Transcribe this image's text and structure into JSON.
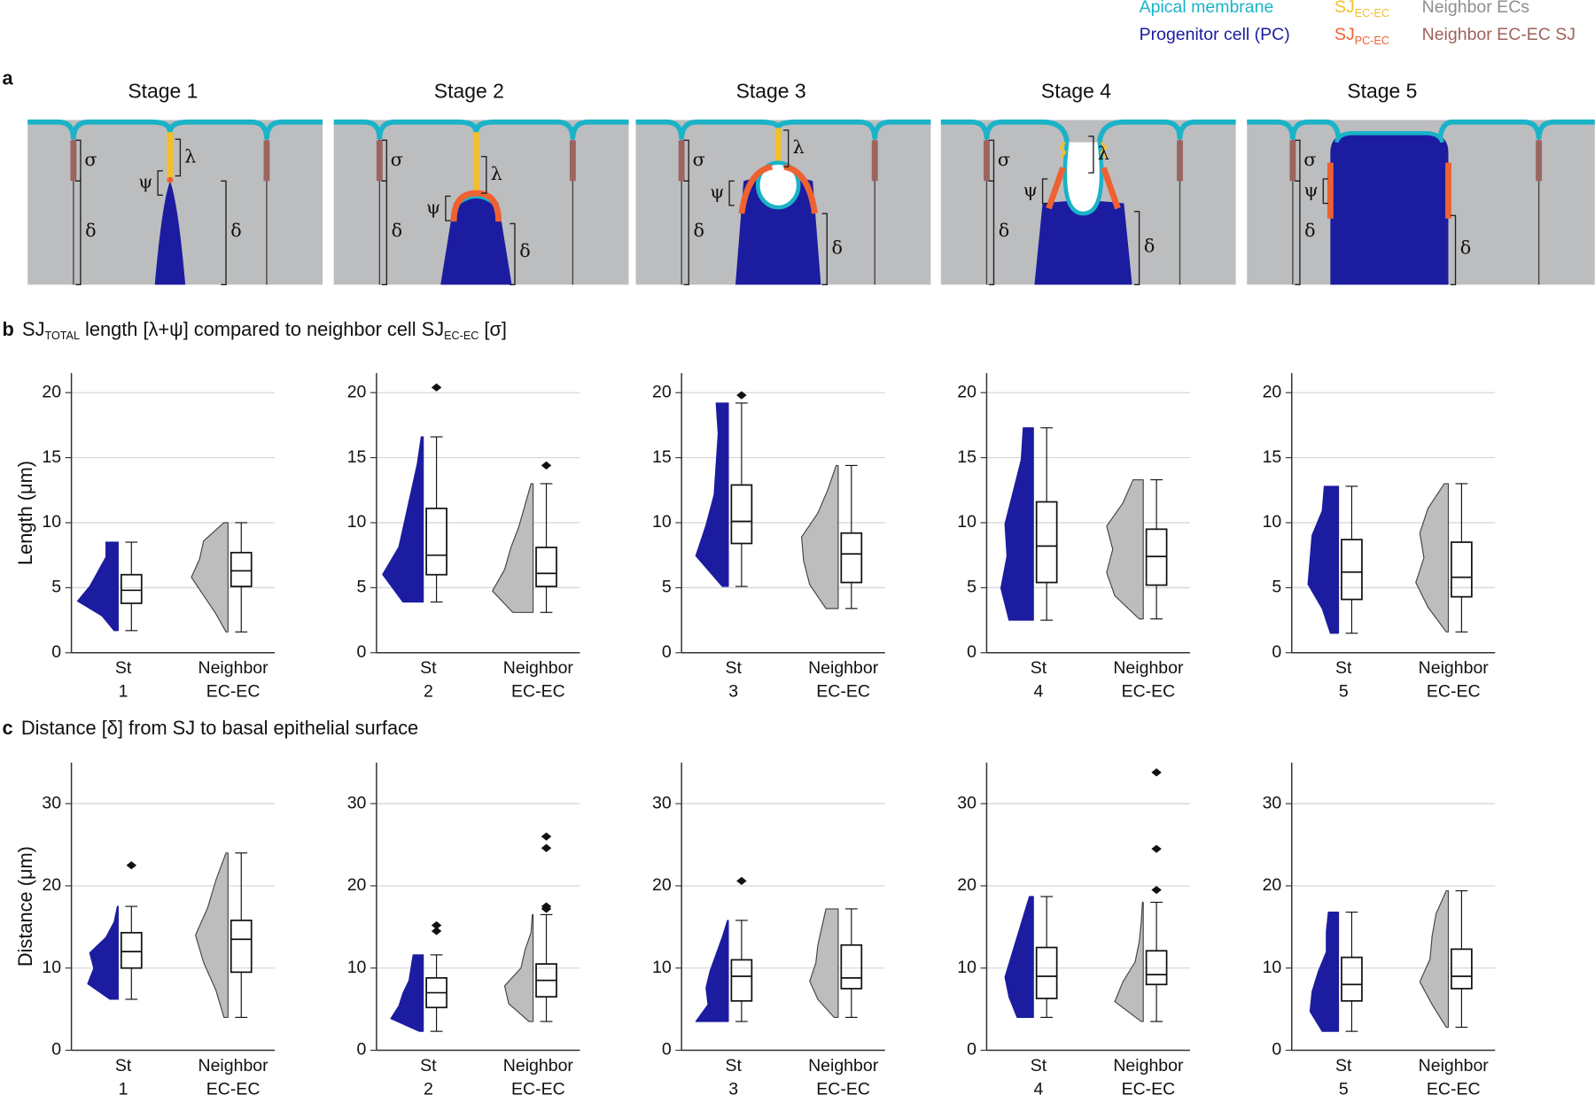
{
  "legend": {
    "items": [
      {
        "label": "Apical membrane",
        "color": "#1ab3c8"
      },
      {
        "label": "Progenitor cell (PC)",
        "color": "#1c1ca0"
      },
      {
        "label": "SJ",
        "sub": "EC-EC",
        "color": "#f2bf2c"
      },
      {
        "label": "SJ",
        "sub": "PC-EC",
        "color": "#ee6232"
      },
      {
        "label": "Neighbor ECs",
        "color": "#8e8e8e"
      },
      {
        "label": "Neighbor EC-EC SJ",
        "color": "#9f625c"
      }
    ]
  },
  "panel_a": {
    "letter": "a",
    "stages": [
      "Stage 1",
      "Stage 2",
      "Stage 3",
      "Stage 4",
      "Stage 5"
    ],
    "symbols": {
      "sigma": "σ",
      "lambda": "λ",
      "psi": "ψ",
      "delta": "δ"
    }
  },
  "panel_b": {
    "letter": "b",
    "title_parts": [
      "SJ",
      "TOTAL",
      " length [λ+ψ] compared to neighbor cell SJ",
      "EC-EC",
      " [σ]"
    ]
  },
  "panel_c": {
    "letter": "c",
    "title": "Distance [δ] from SJ to basal epithelial surface"
  },
  "chart_data": [
    {
      "type": "box",
      "ylabel": "Length (μm)",
      "ylim": [
        0,
        21.5
      ],
      "yticks": [
        0,
        5,
        10,
        15,
        20
      ],
      "grid": true,
      "categories": [
        "St 1",
        "Neighbor EC-EC"
      ],
      "boxes": [
        {
          "color": "#1c1ca0",
          "min": 1.7,
          "q1": 3.8,
          "median": 4.8,
          "q3": 6.0,
          "max": 8.5,
          "outliers": [],
          "density": [
            0.1,
            0.4,
            1.0,
            0.7,
            0.5,
            0.3,
            0.3
          ]
        },
        {
          "color": "#bdbdbd",
          "min": 1.6,
          "q1": 5.1,
          "median": 6.3,
          "q3": 7.7,
          "max": 10,
          "outliers": [],
          "density": [
            0.05,
            0.3,
            0.6,
            0.9,
            0.7,
            0.6,
            0.1
          ]
        }
      ]
    },
    {
      "type": "box",
      "ylim": [
        0,
        21.5
      ],
      "yticks": [
        0,
        5,
        10,
        15,
        20
      ],
      "grid": true,
      "categories": [
        "St 2",
        "Neighbor EC-EC"
      ],
      "boxes": [
        {
          "color": "#1c1ca0",
          "min": 3.9,
          "q1": 6.0,
          "median": 7.5,
          "q3": 11.1,
          "max": 16.6,
          "outliers": [
            20.4
          ],
          "density": [
            0.5,
            1.0,
            0.6,
            0.45,
            0.3,
            0.15,
            0.05
          ]
        },
        {
          "color": "#bdbdbd",
          "min": 3.1,
          "q1": 5.1,
          "median": 6.1,
          "q3": 8.1,
          "max": 13,
          "outliers": [
            14.4
          ],
          "density": [
            0.5,
            1.0,
            0.7,
            0.55,
            0.35,
            0.2,
            0.05
          ]
        }
      ]
    },
    {
      "type": "box",
      "ylim": [
        0,
        21.5
      ],
      "yticks": [
        0,
        5,
        10,
        15,
        20
      ],
      "grid": true,
      "categories": [
        "St 3",
        "Neighbor EC-EC"
      ],
      "boxes": [
        {
          "color": "#1c1ca0",
          "min": 5.1,
          "q1": 8.4,
          "median": 10.1,
          "q3": 12.9,
          "max": 19.2,
          "outliers": [
            19.8
          ],
          "density": [
            0.15,
            0.8,
            0.55,
            0.35,
            0.3,
            0.25,
            0.3
          ]
        },
        {
          "color": "#bdbdbd",
          "min": 3.4,
          "q1": 5.4,
          "median": 7.6,
          "q3": 9.2,
          "max": 14.4,
          "outliers": [],
          "density": [
            0.3,
            0.7,
            0.85,
            0.9,
            0.5,
            0.25,
            0.05
          ]
        }
      ]
    },
    {
      "type": "box",
      "ylim": [
        0,
        21.5
      ],
      "yticks": [
        0,
        5,
        10,
        15,
        20
      ],
      "grid": true,
      "categories": [
        "St 4",
        "Neighbor EC-EC"
      ],
      "boxes": [
        {
          "color": "#1c1ca0",
          "min": 2.5,
          "q1": 5.4,
          "median": 8.2,
          "q3": 11.6,
          "max": 17.3,
          "outliers": [],
          "density": [
            0.6,
            0.8,
            0.65,
            0.7,
            0.5,
            0.3,
            0.25
          ]
        },
        {
          "color": "#bdbdbd",
          "min": 2.6,
          "q1": 5.2,
          "median": 7.4,
          "q3": 9.5,
          "max": 13.3,
          "outliers": [],
          "density": [
            0.1,
            0.7,
            0.9,
            0.75,
            0.9,
            0.5,
            0.25
          ]
        }
      ]
    },
    {
      "type": "box",
      "ylim": [
        0,
        21.5
      ],
      "yticks": [
        0,
        5,
        10,
        15,
        20
      ],
      "grid": true,
      "categories": [
        "St 5",
        "Neighbor EC-EC"
      ],
      "boxes": [
        {
          "color": "#1c1ca0",
          "min": 1.5,
          "q1": 4.1,
          "median": 6.2,
          "q3": 8.7,
          "max": 12.8,
          "outliers": [],
          "density": [
            0.2,
            0.4,
            0.75,
            0.7,
            0.65,
            0.4,
            0.35
          ]
        },
        {
          "color": "#bdbdbd",
          "min": 1.6,
          "q1": 4.3,
          "median": 5.8,
          "q3": 8.5,
          "max": 13,
          "outliers": [],
          "density": [
            0.05,
            0.5,
            0.8,
            0.6,
            0.7,
            0.5,
            0.1
          ]
        }
      ]
    },
    {
      "type": "box",
      "ylabel": "Distance (μm)",
      "ylim": [
        0,
        35
      ],
      "yticks": [
        0,
        10,
        20,
        30
      ],
      "grid": true,
      "categories": [
        "St 1",
        "Neighbor EC-EC"
      ],
      "boxes": [
        {
          "color": "#1c1ca0",
          "min": 6.2,
          "q1": 10,
          "median": 12,
          "q3": 14.3,
          "max": 17.5,
          "outliers": [
            22.5
          ],
          "density": [
            0.2,
            0.75,
            0.6,
            0.7,
            0.3,
            0.1,
            0.02
          ]
        },
        {
          "color": "#bdbdbd",
          "min": 4,
          "q1": 9.5,
          "median": 13.5,
          "q3": 15.8,
          "max": 24,
          "outliers": [],
          "density": [
            0.1,
            0.3,
            0.6,
            0.8,
            0.5,
            0.3,
            0.05
          ]
        }
      ]
    },
    {
      "type": "box",
      "ylim": [
        0,
        35
      ],
      "yticks": [
        0,
        10,
        20,
        30
      ],
      "grid": true,
      "categories": [
        "St 2",
        "Neighbor EC-EC"
      ],
      "boxes": [
        {
          "color": "#1c1ca0",
          "min": 2.3,
          "q1": 5.2,
          "median": 7,
          "q3": 8.8,
          "max": 11.6,
          "outliers": [
            14.5,
            15.2
          ],
          "density": [
            0.1,
            0.8,
            0.6,
            0.5,
            0.35,
            0.3,
            0.25
          ]
        },
        {
          "color": "#bdbdbd",
          "min": 3.5,
          "q1": 6.5,
          "median": 8.5,
          "q3": 10.5,
          "max": 16.5,
          "outliers": [
            17.2,
            17.5,
            24.6,
            26
          ],
          "density": [
            0.1,
            0.6,
            0.7,
            0.3,
            0.2,
            0.05,
            0.02
          ]
        }
      ]
    },
    {
      "type": "box",
      "ylim": [
        0,
        35
      ],
      "yticks": [
        0,
        10,
        20,
        30
      ],
      "grid": true,
      "categories": [
        "St 3",
        "Neighbor EC-EC"
      ],
      "boxes": [
        {
          "color": "#1c1ca0",
          "min": 3.5,
          "q1": 6,
          "median": 9,
          "q3": 11,
          "max": 15.8,
          "outliers": [
            20.6
          ],
          "density": [
            0.8,
            0.5,
            0.55,
            0.45,
            0.3,
            0.15,
            0.02
          ]
        },
        {
          "color": "#bdbdbd",
          "min": 4,
          "q1": 7.5,
          "median": 8.8,
          "q3": 12.8,
          "max": 17.2,
          "outliers": [],
          "density": [
            0.1,
            0.5,
            0.7,
            0.55,
            0.5,
            0.4,
            0.3
          ]
        }
      ]
    },
    {
      "type": "box",
      "ylim": [
        0,
        35
      ],
      "yticks": [
        0,
        10,
        20,
        30
      ],
      "grid": true,
      "categories": [
        "St 4",
        "Neighbor EC-EC"
      ],
      "boxes": [
        {
          "color": "#1c1ca0",
          "min": 4,
          "q1": 6.3,
          "median": 9,
          "q3": 12.5,
          "max": 18.7,
          "outliers": [],
          "density": [
            0.4,
            0.6,
            0.7,
            0.55,
            0.4,
            0.25,
            0.1
          ]
        },
        {
          "color": "#bdbdbd",
          "min": 3.5,
          "q1": 8,
          "median": 9.2,
          "q3": 12.1,
          "max": 18,
          "outliers": [
            19.5,
            24.5,
            33.8
          ],
          "density": [
            0.05,
            0.7,
            0.5,
            0.2,
            0.1,
            0.05,
            0.02
          ]
        }
      ]
    },
    {
      "type": "box",
      "ylim": [
        0,
        35
      ],
      "yticks": [
        0,
        10,
        20,
        30
      ],
      "grid": true,
      "categories": [
        "St 5",
        "Neighbor EC-EC"
      ],
      "boxes": [
        {
          "color": "#1c1ca0",
          "min": 2.3,
          "q1": 6,
          "median": 8,
          "q3": 11.3,
          "max": 16.8,
          "outliers": [],
          "density": [
            0.4,
            0.7,
            0.65,
            0.5,
            0.3,
            0.3,
            0.25
          ]
        },
        {
          "color": "#bdbdbd",
          "min": 2.8,
          "q1": 7.5,
          "median": 9,
          "q3": 12.3,
          "max": 19.4,
          "outliers": [],
          "density": [
            0.05,
            0.4,
            0.7,
            0.45,
            0.4,
            0.3,
            0.05
          ]
        }
      ]
    }
  ]
}
